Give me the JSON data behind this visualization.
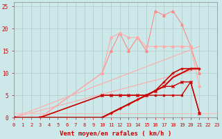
{
  "title": "",
  "xlabel": "Vent moyen/en rafales ( km/h )",
  "ylabel": "",
  "xlim": [
    0,
    23
  ],
  "ylim": [
    0,
    26
  ],
  "xticks": [
    0,
    1,
    2,
    3,
    4,
    5,
    6,
    7,
    8,
    9,
    10,
    11,
    12,
    13,
    14,
    15,
    16,
    17,
    18,
    19,
    20,
    21,
    22,
    23
  ],
  "yticks": [
    0,
    5,
    10,
    15,
    20,
    25
  ],
  "background_color": "#cce8e8",
  "grid_color": "#b0c8c8",
  "lines": [
    {
      "x": [
        0,
        3,
        10,
        11,
        12,
        13,
        14,
        15,
        16,
        17,
        18,
        19,
        20,
        21,
        22,
        23
      ],
      "y": [
        0,
        0,
        10,
        15,
        19,
        15,
        18,
        15,
        24,
        23,
        24,
        21,
        16,
        10,
        null,
        null
      ],
      "color": "#ff8888",
      "linewidth": 0.8,
      "marker": "^",
      "markersize": 2.5
    },
    {
      "x": [
        0,
        21
      ],
      "y": [
        0,
        16
      ],
      "color": "#ffaaaa",
      "linewidth": 0.8,
      "marker": null,
      "markersize": 2
    },
    {
      "x": [
        0,
        21
      ],
      "y": [
        0,
        11
      ],
      "color": "#ffaaaa",
      "linewidth": 0.8,
      "marker": null,
      "markersize": 2
    },
    {
      "x": [
        0,
        3,
        10,
        11,
        12,
        13,
        14,
        15,
        16,
        17,
        18,
        19,
        20,
        21,
        22,
        23
      ],
      "y": [
        0,
        0,
        10,
        18,
        19,
        18,
        18,
        16,
        16,
        16,
        16,
        16,
        16,
        7,
        null,
        null
      ],
      "color": "#ffaaaa",
      "linewidth": 0.8,
      "marker": "D",
      "markersize": 2
    },
    {
      "x": [
        0,
        23
      ],
      "y": [
        1,
        1
      ],
      "color": "#ffbbbb",
      "linewidth": 0.8,
      "marker": null,
      "markersize": 2
    },
    {
      "x": [
        0,
        3,
        10,
        11,
        12,
        13,
        14,
        15,
        16,
        17,
        18,
        19,
        20,
        21
      ],
      "y": [
        0,
        0,
        0,
        1,
        2,
        3,
        4,
        5,
        6,
        8,
        10,
        11,
        11,
        11
      ],
      "color": "#cc0000",
      "linewidth": 1.2,
      "marker": "+",
      "markersize": 3.5
    },
    {
      "x": [
        0,
        3,
        10,
        11,
        12,
        13,
        14,
        15,
        16,
        17,
        18,
        19,
        20,
        21
      ],
      "y": [
        0,
        0,
        0,
        1,
        2,
        3,
        4,
        5,
        6,
        7,
        9,
        10,
        11,
        11
      ],
      "color": "#cc0000",
      "linewidth": 1.5,
      "marker": null,
      "markersize": 2
    },
    {
      "x": [
        0,
        3,
        10,
        11,
        12,
        13,
        14,
        15,
        16,
        17,
        18,
        19,
        20,
        21
      ],
      "y": [
        0,
        0,
        5,
        5,
        5,
        5,
        5,
        5,
        6,
        7,
        7,
        8,
        8,
        1
      ],
      "color": "#cc0000",
      "linewidth": 1.0,
      "marker": "x",
      "markersize": 3
    },
    {
      "x": [
        0,
        3,
        10,
        11,
        12,
        13,
        14,
        15,
        16,
        17,
        18,
        19,
        20,
        21
      ],
      "y": [
        0,
        0,
        5,
        5,
        5,
        5,
        5,
        5,
        5,
        5,
        5,
        5,
        8,
        1
      ],
      "color": "#cc0000",
      "linewidth": 1.0,
      "marker": "s",
      "markersize": 2
    },
    {
      "x": [
        0,
        23
      ],
      "y": [
        0,
        0
      ],
      "color": "#cc0000",
      "linewidth": 0.8,
      "marker": null,
      "markersize": 2
    }
  ]
}
